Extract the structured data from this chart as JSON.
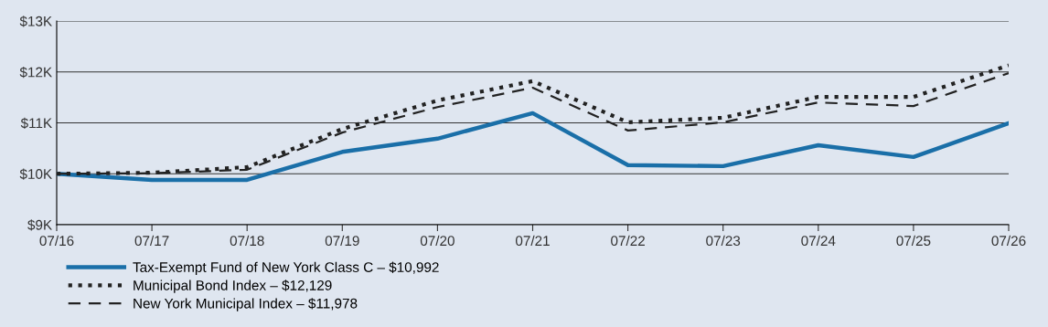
{
  "chart_data": {
    "type": "line",
    "categories": [
      "07/16",
      "07/17",
      "07/18",
      "07/19",
      "07/20",
      "07/21",
      "07/22",
      "07/23",
      "07/24",
      "07/25",
      "07/26"
    ],
    "series": [
      {
        "name": "Tax-Exempt Fund of New York Class C – $10,992",
        "color": "#1a6fa8",
        "line_style": "solid",
        "values": [
          10000,
          9880,
          9880,
          10430,
          10690,
          11190,
          10170,
          10150,
          10560,
          10330,
          10992
        ]
      },
      {
        "name": "Municipal Bond Index – $12,129",
        "color": "#222222",
        "line_style": "dotted",
        "values": [
          10000,
          10020,
          10130,
          10880,
          11440,
          11820,
          11010,
          11100,
          11510,
          11510,
          12129
        ]
      },
      {
        "name": "New York Municipal Index – $11,978",
        "color": "#222222",
        "line_style": "dashed",
        "values": [
          10000,
          10010,
          10080,
          10810,
          11310,
          11690,
          10850,
          11010,
          11400,
          11330,
          11978
        ]
      }
    ],
    "ylim": [
      9000,
      13000
    ],
    "yticks": [
      {
        "value": 9000,
        "label": "$9K"
      },
      {
        "value": 10000,
        "label": "$10K"
      },
      {
        "value": 11000,
        "label": "$11K"
      },
      {
        "value": 12000,
        "label": "$12K"
      },
      {
        "value": 13000,
        "label": "$13K"
      }
    ],
    "grid": "y",
    "legend": "bottom"
  }
}
